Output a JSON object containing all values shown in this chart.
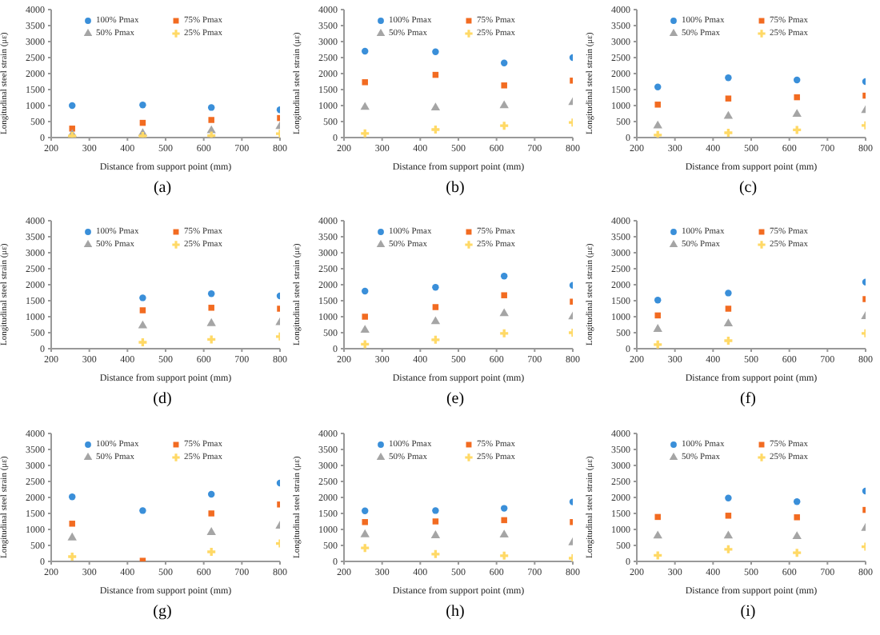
{
  "chart_data": [
    {
      "type": "scatter",
      "x": [
        255,
        440,
        620,
        800
      ],
      "xlabel": "Distance from support point (mm)",
      "ylabel": "Longitudinal steel strain (με)",
      "xlim": [
        200,
        800
      ],
      "xticks": [
        200,
        300,
        400,
        500,
        600,
        700,
        800
      ],
      "ylim": [
        0,
        4000
      ],
      "yticks": [
        0,
        500,
        1000,
        1500,
        2000,
        2500,
        3000,
        3500,
        4000
      ],
      "legend": "top",
      "grid": false,
      "annotations": [
        "(a)"
      ],
      "series": [
        {
          "name": "100% Pmax",
          "color": "#3a8fd9",
          "marker": "circle",
          "values": [
            1000,
            1020,
            940,
            870
          ]
        },
        {
          "name": "75% Pmax",
          "color": "#f26b21",
          "marker": "square",
          "values": [
            280,
            460,
            550,
            610
          ]
        },
        {
          "name": "50% Pmax",
          "color": "#a5a5a5",
          "marker": "triangle",
          "values": [
            100,
            130,
            220,
            350
          ]
        },
        {
          "name": "25% Pmax",
          "color": "#ffd966",
          "marker": "cross",
          "values": [
            50,
            50,
            60,
            120
          ]
        }
      ]
    },
    {
      "type": "scatter",
      "x": [
        255,
        440,
        620,
        800
      ],
      "xlabel": "Distance from support point (mm)",
      "ylabel": "Longitudinal steel strain (με)",
      "xlim": [
        200,
        800
      ],
      "xticks": [
        200,
        300,
        400,
        500,
        600,
        700,
        800
      ],
      "ylim": [
        0,
        4000
      ],
      "yticks": [
        0,
        500,
        1000,
        1500,
        2000,
        2500,
        3000,
        3500,
        4000
      ],
      "legend": "top",
      "grid": false,
      "annotations": [
        "(b)"
      ],
      "series": [
        {
          "name": "100% Pmax",
          "color": "#3a8fd9",
          "marker": "circle",
          "values": [
            2700,
            2680,
            2330,
            2500
          ]
        },
        {
          "name": "75% Pmax",
          "color": "#f26b21",
          "marker": "square",
          "values": [
            1730,
            1960,
            1630,
            1780
          ]
        },
        {
          "name": "50% Pmax",
          "color": "#a5a5a5",
          "marker": "triangle",
          "values": [
            950,
            930,
            1000,
            1100
          ]
        },
        {
          "name": "25% Pmax",
          "color": "#ffd966",
          "marker": "cross",
          "values": [
            130,
            250,
            370,
            470
          ]
        }
      ]
    },
    {
      "type": "scatter",
      "x": [
        255,
        440,
        620,
        800
      ],
      "xlabel": "Distance from support point (mm)",
      "ylabel": "Longitudinal steel strain (με)",
      "xlim": [
        200,
        800
      ],
      "xticks": [
        200,
        300,
        400,
        500,
        600,
        700,
        800
      ],
      "ylim": [
        0,
        4000
      ],
      "yticks": [
        0,
        500,
        1000,
        1500,
        2000,
        2500,
        3000,
        3500,
        4000
      ],
      "legend": "top",
      "grid": false,
      "annotations": [
        "(c)"
      ],
      "series": [
        {
          "name": "100% Pmax",
          "color": "#3a8fd9",
          "marker": "circle",
          "values": [
            1580,
            1870,
            1800,
            1750
          ]
        },
        {
          "name": "75% Pmax",
          "color": "#f26b21",
          "marker": "square",
          "values": [
            1030,
            1220,
            1260,
            1310
          ]
        },
        {
          "name": "50% Pmax",
          "color": "#a5a5a5",
          "marker": "triangle",
          "values": [
            370,
            670,
            730,
            850
          ]
        },
        {
          "name": "25% Pmax",
          "color": "#ffd966",
          "marker": "cross",
          "values": [
            80,
            150,
            240,
            380
          ]
        }
      ]
    },
    {
      "type": "scatter",
      "x": [
        440,
        620,
        800
      ],
      "xlabel": "Distance from support point (mm)",
      "ylabel": "Longitudinal steel strain (με)",
      "xlim": [
        200,
        800
      ],
      "xticks": [
        200,
        300,
        400,
        500,
        600,
        700,
        800
      ],
      "ylim": [
        0,
        4000
      ],
      "yticks": [
        0,
        500,
        1000,
        1500,
        2000,
        2500,
        3000,
        3500,
        4000
      ],
      "legend": "top",
      "grid": false,
      "annotations": [
        "(d)"
      ],
      "series": [
        {
          "name": "100% Pmax",
          "color": "#3a8fd9",
          "marker": "circle",
          "values": [
            1590,
            1720,
            1650
          ]
        },
        {
          "name": "75% Pmax",
          "color": "#f26b21",
          "marker": "square",
          "values": [
            1200,
            1280,
            1250
          ]
        },
        {
          "name": "50% Pmax",
          "color": "#a5a5a5",
          "marker": "triangle",
          "values": [
            720,
            790,
            820
          ]
        },
        {
          "name": "25% Pmax",
          "color": "#ffd966",
          "marker": "cross",
          "values": [
            200,
            290,
            380
          ]
        }
      ]
    },
    {
      "type": "scatter",
      "x": [
        255,
        440,
        620,
        800
      ],
      "xlabel": "Distance from support point (mm)",
      "ylabel": "Longitudinal steel strain (με)",
      "xlim": [
        200,
        800
      ],
      "xticks": [
        200,
        300,
        400,
        500,
        600,
        700,
        800
      ],
      "ylim": [
        0,
        4000
      ],
      "yticks": [
        0,
        500,
        1000,
        1500,
        2000,
        2500,
        3000,
        3500,
        4000
      ],
      "legend": "top",
      "grid": false,
      "annotations": [
        "(e)"
      ],
      "series": [
        {
          "name": "100% Pmax",
          "color": "#3a8fd9",
          "marker": "circle",
          "values": [
            1800,
            1920,
            2270,
            1980
          ]
        },
        {
          "name": "75% Pmax",
          "color": "#f26b21",
          "marker": "square",
          "values": [
            1000,
            1300,
            1670,
            1470
          ]
        },
        {
          "name": "50% Pmax",
          "color": "#a5a5a5",
          "marker": "triangle",
          "values": [
            580,
            850,
            1100,
            1000
          ]
        },
        {
          "name": "25% Pmax",
          "color": "#ffd966",
          "marker": "cross",
          "values": [
            140,
            280,
            480,
            500
          ]
        }
      ]
    },
    {
      "type": "scatter",
      "x": [
        255,
        440,
        620,
        800
      ],
      "xlabel": "Distance from support point (mm)",
      "ylabel": "Longitudinal steel strain (με)",
      "xlim": [
        200,
        800
      ],
      "xticks": [
        200,
        300,
        400,
        500,
        600,
        700,
        800
      ],
      "ylim": [
        0,
        4000
      ],
      "yticks": [
        0,
        500,
        1000,
        1500,
        2000,
        2500,
        3000,
        3500,
        4000
      ],
      "legend": "top",
      "grid": false,
      "annotations": [
        "(f)"
      ],
      "series": [
        {
          "name": "100% Pmax",
          "color": "#3a8fd9",
          "marker": "circle",
          "values": [
            1520,
            1740,
            null,
            2080
          ]
        },
        {
          "name": "75% Pmax",
          "color": "#f26b21",
          "marker": "square",
          "values": [
            1040,
            1250,
            null,
            1550
          ]
        },
        {
          "name": "50% Pmax",
          "color": "#a5a5a5",
          "marker": "triangle",
          "values": [
            610,
            780,
            null,
            1010
          ]
        },
        {
          "name": "25% Pmax",
          "color": "#ffd966",
          "marker": "cross",
          "values": [
            130,
            250,
            null,
            480
          ]
        }
      ]
    },
    {
      "type": "scatter",
      "x": [
        255,
        440,
        620,
        800
      ],
      "xlabel": "Distance from support point (mm)",
      "ylabel": "Longitudinal steel strain (με)",
      "xlim": [
        200,
        800
      ],
      "xticks": [
        200,
        300,
        400,
        500,
        600,
        700,
        800
      ],
      "ylim": [
        0,
        4000
      ],
      "yticks": [
        0,
        500,
        1000,
        1500,
        2000,
        2500,
        3000,
        3500,
        4000
      ],
      "legend": "top",
      "grid": false,
      "annotations": [
        "(g)"
      ],
      "series": [
        {
          "name": "100% Pmax",
          "color": "#3a8fd9",
          "marker": "circle",
          "values": [
            2020,
            1590,
            2100,
            2450
          ]
        },
        {
          "name": "75% Pmax",
          "color": "#f26b21",
          "marker": "square",
          "values": [
            1180,
            20,
            1500,
            1780
          ]
        },
        {
          "name": "50% Pmax",
          "color": "#a5a5a5",
          "marker": "triangle",
          "values": [
            740,
            null,
            910,
            1110
          ]
        },
        {
          "name": "25% Pmax",
          "color": "#ffd966",
          "marker": "cross",
          "values": [
            150,
            null,
            300,
            560
          ]
        }
      ]
    },
    {
      "type": "scatter",
      "x": [
        255,
        440,
        620,
        800
      ],
      "xlabel": "Distance from support point (mm)",
      "ylabel": "Longitudinal steel strain (με)",
      "xlim": [
        200,
        800
      ],
      "xticks": [
        200,
        300,
        400,
        500,
        600,
        700,
        800
      ],
      "ylim": [
        0,
        4000
      ],
      "yticks": [
        0,
        500,
        1000,
        1500,
        2000,
        2500,
        3000,
        3500,
        4000
      ],
      "legend": "top",
      "grid": false,
      "annotations": [
        "(h)"
      ],
      "series": [
        {
          "name": "100% Pmax",
          "color": "#3a8fd9",
          "marker": "circle",
          "values": [
            1580,
            1590,
            1660,
            1860
          ]
        },
        {
          "name": "75% Pmax",
          "color": "#f26b21",
          "marker": "square",
          "values": [
            1230,
            1250,
            1290,
            1230
          ]
        },
        {
          "name": "50% Pmax",
          "color": "#a5a5a5",
          "marker": "triangle",
          "values": [
            840,
            810,
            830,
            590
          ]
        },
        {
          "name": "25% Pmax",
          "color": "#ffd966",
          "marker": "cross",
          "values": [
            420,
            230,
            180,
            100
          ]
        }
      ]
    },
    {
      "type": "scatter",
      "x": [
        255,
        440,
        620,
        800
      ],
      "xlabel": "Distance from support point (mm)",
      "ylabel": "Longitudinal steel strain (με)",
      "xlim": [
        200,
        800
      ],
      "xticks": [
        200,
        300,
        400,
        500,
        600,
        700,
        800
      ],
      "ylim": [
        0,
        4000
      ],
      "yticks": [
        0,
        500,
        1000,
        1500,
        2000,
        2500,
        3000,
        3500,
        4000
      ],
      "legend": "top",
      "grid": false,
      "annotations": [
        "(i)"
      ],
      "series": [
        {
          "name": "100% Pmax",
          "color": "#3a8fd9",
          "marker": "circle",
          "values": [
            null,
            1980,
            1870,
            2200
          ]
        },
        {
          "name": "75% Pmax",
          "color": "#f26b21",
          "marker": "square",
          "values": [
            1390,
            1430,
            1380,
            1610
          ]
        },
        {
          "name": "50% Pmax",
          "color": "#a5a5a5",
          "marker": "triangle",
          "values": [
            800,
            800,
            780,
            1040
          ]
        },
        {
          "name": "25% Pmax",
          "color": "#ffd966",
          "marker": "cross",
          "values": [
            190,
            380,
            270,
            460
          ]
        }
      ]
    }
  ]
}
